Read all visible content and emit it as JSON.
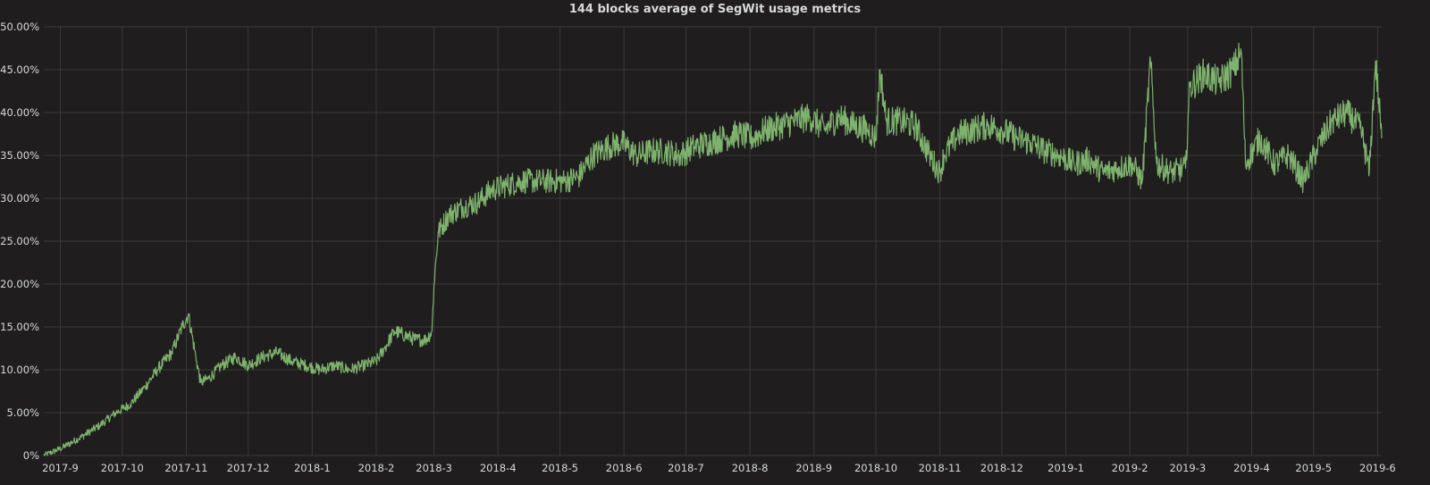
{
  "colors": {
    "background": "#1f1d1e",
    "grid": "#3a3a3a",
    "text": "#d8d9da",
    "series": "#7eb26d"
  },
  "chart_data": {
    "type": "line",
    "title": "144 blocks average of SegWit usage metrics",
    "xlabel": "",
    "ylabel": "",
    "grid": true,
    "legend": "none",
    "xlim": [
      "2017-08-24",
      "2019-06-03"
    ],
    "ylim": [
      0,
      50
    ],
    "x_tick_labels": [
      "2017-9",
      "2017-10",
      "2017-11",
      "2017-12",
      "2018-1",
      "2018-2",
      "2018-3",
      "2018-4",
      "2018-5",
      "2018-6",
      "2018-7",
      "2018-8",
      "2018-9",
      "2018-10",
      "2018-11",
      "2018-12",
      "2019-1",
      "2019-2",
      "2019-3",
      "2019-4",
      "2019-5",
      "2019-6"
    ],
    "y_tick_labels": [
      "0%",
      "5.00%",
      "10.00%",
      "15.00%",
      "20.00%",
      "25.00%",
      "30.00%",
      "35.00%",
      "40.00%",
      "45.00%",
      "50.00%"
    ],
    "series": [
      {
        "values": [
          [
            "2017-08-24",
            0
          ],
          [
            "2017-09-01",
            0.8
          ],
          [
            "2017-09-10",
            2
          ],
          [
            "2017-09-20",
            3.5
          ],
          [
            "2017-09-28",
            5
          ],
          [
            "2017-10-05",
            6
          ],
          [
            "2017-10-12",
            8
          ],
          [
            "2017-10-18",
            10
          ],
          [
            "2017-10-25",
            12
          ],
          [
            "2017-10-30",
            15
          ],
          [
            "2017-11-02",
            16.5
          ],
          [
            "2017-11-06",
            11
          ],
          [
            "2017-11-08",
            8.5
          ],
          [
            "2017-11-12",
            9
          ],
          [
            "2017-11-18",
            10.5
          ],
          [
            "2017-11-25",
            11.5
          ],
          [
            "2017-12-01",
            10.5
          ],
          [
            "2017-12-08",
            11.5
          ],
          [
            "2017-12-15",
            12
          ],
          [
            "2017-12-22",
            11
          ],
          [
            "2017-12-29",
            10.5
          ],
          [
            "2018-01-05",
            10
          ],
          [
            "2018-01-12",
            10.5
          ],
          [
            "2018-01-19",
            10
          ],
          [
            "2018-01-26",
            10.5
          ],
          [
            "2018-02-01",
            11
          ],
          [
            "2018-02-05",
            12.5
          ],
          [
            "2018-02-10",
            14.5
          ],
          [
            "2018-02-15",
            14
          ],
          [
            "2018-02-20",
            13.5
          ],
          [
            "2018-02-25",
            13.5
          ],
          [
            "2018-02-28",
            14.5
          ],
          [
            "2018-03-01",
            20
          ],
          [
            "2018-03-03",
            26
          ],
          [
            "2018-03-08",
            28
          ],
          [
            "2018-03-15",
            29
          ],
          [
            "2018-03-22",
            29.5
          ],
          [
            "2018-03-29",
            31
          ],
          [
            "2018-04-05",
            31.5
          ],
          [
            "2018-04-12",
            32
          ],
          [
            "2018-04-19",
            32
          ],
          [
            "2018-04-26",
            32
          ],
          [
            "2018-05-03",
            32
          ],
          [
            "2018-05-10",
            32.5
          ],
          [
            "2018-05-17",
            35
          ],
          [
            "2018-05-24",
            36
          ],
          [
            "2018-05-31",
            36.5
          ],
          [
            "2018-06-07",
            35
          ],
          [
            "2018-06-14",
            35.5
          ],
          [
            "2018-06-21",
            35.5
          ],
          [
            "2018-06-28",
            35
          ],
          [
            "2018-07-05",
            36
          ],
          [
            "2018-07-12",
            36.5
          ],
          [
            "2018-07-19",
            37
          ],
          [
            "2018-07-26",
            37.5
          ],
          [
            "2018-08-02",
            37
          ],
          [
            "2018-08-09",
            38
          ],
          [
            "2018-08-16",
            38.5
          ],
          [
            "2018-08-23",
            39
          ],
          [
            "2018-08-30",
            39.5
          ],
          [
            "2018-09-06",
            38
          ],
          [
            "2018-09-13",
            39.5
          ],
          [
            "2018-09-20",
            38.5
          ],
          [
            "2018-09-27",
            38
          ],
          [
            "2018-10-01",
            37
          ],
          [
            "2018-10-03",
            45
          ],
          [
            "2018-10-06",
            39
          ],
          [
            "2018-10-13",
            39
          ],
          [
            "2018-10-20",
            38.5
          ],
          [
            "2018-10-27",
            35
          ],
          [
            "2018-11-01",
            33
          ],
          [
            "2018-11-03",
            35
          ],
          [
            "2018-11-10",
            37.5
          ],
          [
            "2018-11-17",
            38
          ],
          [
            "2018-11-24",
            38.5
          ],
          [
            "2018-12-01",
            38
          ],
          [
            "2018-12-08",
            37
          ],
          [
            "2018-12-15",
            36.5
          ],
          [
            "2018-12-22",
            35.5
          ],
          [
            "2018-12-29",
            35
          ],
          [
            "2019-01-05",
            34
          ],
          [
            "2019-01-12",
            34.5
          ],
          [
            "2019-01-19",
            33
          ],
          [
            "2019-01-26",
            33.5
          ],
          [
            "2019-02-02",
            34
          ],
          [
            "2019-02-07",
            32
          ],
          [
            "2019-02-11",
            46
          ],
          [
            "2019-02-14",
            34
          ],
          [
            "2019-02-21",
            33
          ],
          [
            "2019-02-28",
            33.5
          ],
          [
            "2019-03-02",
            43
          ],
          [
            "2019-03-09",
            44.5
          ],
          [
            "2019-03-16",
            43.5
          ],
          [
            "2019-03-23",
            45
          ],
          [
            "2019-03-27",
            47
          ],
          [
            "2019-03-29",
            34
          ],
          [
            "2019-04-05",
            37
          ],
          [
            "2019-04-12",
            34
          ],
          [
            "2019-04-19",
            35
          ],
          [
            "2019-04-26",
            32
          ],
          [
            "2019-05-03",
            36
          ],
          [
            "2019-05-10",
            39
          ],
          [
            "2019-05-17",
            40
          ],
          [
            "2019-05-24",
            38
          ],
          [
            "2019-05-28",
            33
          ],
          [
            "2019-05-31",
            46
          ],
          [
            "2019-06-03",
            37
          ]
        ]
      }
    ]
  }
}
